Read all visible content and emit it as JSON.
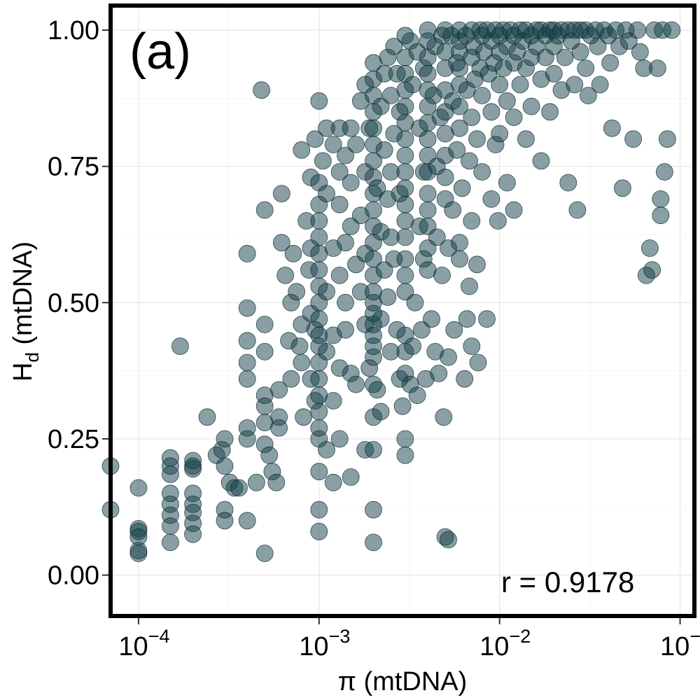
{
  "chart_data": {
    "type": "scatter",
    "panel_label": "(a)",
    "xlabel_main": "π",
    "xlabel_suffix": " (mtDNA)",
    "ylabel_main": "H",
    "ylabel_sub": "d",
    "ylabel_suffix": " (mtDNA)",
    "annotation": "r = 0.9178",
    "x_scale": "log10",
    "xlim": [
      7e-05,
      0.12
    ],
    "ylim": [
      -0.075,
      1.045
    ],
    "x_ticks": [
      {
        "value": 0.0001,
        "base": "10",
        "exp": "−4"
      },
      {
        "value": 0.001,
        "base": "10",
        "exp": "−3"
      },
      {
        "value": 0.01,
        "base": "10",
        "exp": "−2"
      },
      {
        "value": 0.1,
        "base": "10",
        "exp": "−1"
      }
    ],
    "y_ticks": [
      {
        "value": 0.0,
        "label": "0.00"
      },
      {
        "value": 0.25,
        "label": "0.25"
      },
      {
        "value": 0.5,
        "label": "0.50"
      },
      {
        "value": 0.75,
        "label": "0.75"
      },
      {
        "value": 1.0,
        "label": "1.00"
      }
    ],
    "grid": true,
    "point_color": "#133f48",
    "points": [
      [
        7e-05,
        0.2
      ],
      [
        7e-05,
        0.12
      ],
      [
        0.0001,
        0.16
      ],
      [
        0.0001,
        0.08
      ],
      [
        0.0001,
        0.085
      ],
      [
        0.0001,
        0.07
      ],
      [
        0.0001,
        0.04
      ],
      [
        0.0001,
        0.045
      ],
      [
        0.00015,
        0.215
      ],
      [
        0.00015,
        0.2
      ],
      [
        0.00015,
        0.185
      ],
      [
        0.00015,
        0.15
      ],
      [
        0.00015,
        0.13
      ],
      [
        0.00015,
        0.11
      ],
      [
        0.00015,
        0.09
      ],
      [
        0.00015,
        0.06
      ],
      [
        0.00017,
        0.42
      ],
      [
        0.0002,
        0.21
      ],
      [
        0.0002,
        0.2
      ],
      [
        0.0002,
        0.195
      ],
      [
        0.0002,
        0.15
      ],
      [
        0.0002,
        0.13
      ],
      [
        0.0002,
        0.115
      ],
      [
        0.0002,
        0.095
      ],
      [
        0.0002,
        0.075
      ],
      [
        0.00024,
        0.29
      ],
      [
        0.00027,
        0.22
      ],
      [
        0.00029,
        0.23
      ],
      [
        0.0003,
        0.25
      ],
      [
        0.0003,
        0.2
      ],
      [
        0.0003,
        0.12
      ],
      [
        0.0003,
        0.1
      ],
      [
        0.00032,
        0.17
      ],
      [
        0.00034,
        0.16
      ],
      [
        0.00036,
        0.16
      ],
      [
        0.0004,
        0.36
      ],
      [
        0.0004,
        0.39
      ],
      [
        0.0004,
        0.59
      ],
      [
        0.0004,
        0.49
      ],
      [
        0.0004,
        0.43
      ],
      [
        0.0004,
        0.27
      ],
      [
        0.0004,
        0.25
      ],
      [
        0.0004,
        0.1
      ],
      [
        0.00045,
        0.17
      ],
      [
        0.00048,
        0.89
      ],
      [
        0.0005,
        0.04
      ],
      [
        0.0005,
        0.67
      ],
      [
        0.0005,
        0.46
      ],
      [
        0.0005,
        0.41
      ],
      [
        0.0005,
        0.33
      ],
      [
        0.0005,
        0.31
      ],
      [
        0.0005,
        0.28
      ],
      [
        0.0005,
        0.24
      ],
      [
        0.00053,
        0.22
      ],
      [
        0.00055,
        0.19
      ],
      [
        0.00058,
        0.17
      ],
      [
        0.0006,
        0.34
      ],
      [
        0.0006,
        0.29
      ],
      [
        0.0006,
        0.27
      ],
      [
        0.00062,
        0.7
      ],
      [
        0.00062,
        0.61
      ],
      [
        0.00065,
        0.55
      ],
      [
        0.00068,
        0.43
      ],
      [
        0.0007,
        0.5
      ],
      [
        0.0007,
        0.36
      ],
      [
        0.00072,
        0.59
      ],
      [
        0.00075,
        0.52
      ],
      [
        0.00078,
        0.42
      ],
      [
        0.0008,
        0.78
      ],
      [
        0.0008,
        0.46
      ],
      [
        0.0008,
        0.39
      ],
      [
        0.00082,
        0.29
      ],
      [
        0.00085,
        0.65
      ],
      [
        0.00088,
        0.56
      ],
      [
        0.0009,
        0.73
      ],
      [
        0.0009,
        0.6
      ],
      [
        0.0009,
        0.48
      ],
      [
        0.0009,
        0.36
      ],
      [
        0.00095,
        0.8
      ],
      [
        0.00095,
        0.45
      ],
      [
        0.00095,
        0.32
      ],
      [
        0.001,
        0.87
      ],
      [
        0.001,
        0.19
      ],
      [
        0.001,
        0.12
      ],
      [
        0.001,
        0.08
      ],
      [
        0.001,
        0.25
      ],
      [
        0.001,
        0.27
      ],
      [
        0.001,
        0.3
      ],
      [
        0.001,
        0.33
      ],
      [
        0.001,
        0.36
      ],
      [
        0.001,
        0.39
      ],
      [
        0.001,
        0.42
      ],
      [
        0.001,
        0.44
      ],
      [
        0.001,
        0.47
      ],
      [
        0.001,
        0.5
      ],
      [
        0.001,
        0.53
      ],
      [
        0.001,
        0.56
      ],
      [
        0.001,
        0.59
      ],
      [
        0.001,
        0.62
      ],
      [
        0.001,
        0.65
      ],
      [
        0.001,
        0.68
      ],
      [
        0.001,
        0.72
      ],
      [
        0.00105,
        0.76
      ],
      [
        0.0011,
        0.82
      ],
      [
        0.0011,
        0.7
      ],
      [
        0.0011,
        0.52
      ],
      [
        0.0011,
        0.41
      ],
      [
        0.0011,
        0.23
      ],
      [
        0.0012,
        0.79
      ],
      [
        0.0012,
        0.6
      ],
      [
        0.0012,
        0.44
      ],
      [
        0.0012,
        0.32
      ],
      [
        0.0012,
        0.17
      ],
      [
        0.0013,
        0.82
      ],
      [
        0.0013,
        0.74
      ],
      [
        0.0013,
        0.68
      ],
      [
        0.0013,
        0.55
      ],
      [
        0.0013,
        0.38
      ],
      [
        0.0013,
        0.25
      ],
      [
        0.0014,
        0.77
      ],
      [
        0.0014,
        0.61
      ],
      [
        0.0014,
        0.5
      ],
      [
        0.0014,
        0.45
      ],
      [
        0.0015,
        0.82
      ],
      [
        0.0015,
        0.72
      ],
      [
        0.0015,
        0.64
      ],
      [
        0.0015,
        0.37
      ],
      [
        0.0015,
        0.18
      ],
      [
        0.0016,
        0.79
      ],
      [
        0.0016,
        0.57
      ],
      [
        0.0016,
        0.35
      ],
      [
        0.0017,
        0.87
      ],
      [
        0.0017,
        0.66
      ],
      [
        0.0017,
        0.52
      ],
      [
        0.0018,
        0.9
      ],
      [
        0.0018,
        0.74
      ],
      [
        0.0018,
        0.59
      ],
      [
        0.0018,
        0.46
      ],
      [
        0.0018,
        0.23
      ],
      [
        0.0019,
        0.82
      ],
      [
        0.0019,
        0.38
      ],
      [
        0.002,
        0.94
      ],
      [
        0.002,
        0.12
      ],
      [
        0.002,
        0.06
      ],
      [
        0.002,
        0.23
      ],
      [
        0.002,
        0.29
      ],
      [
        0.002,
        0.35
      ],
      [
        0.002,
        0.4
      ],
      [
        0.002,
        0.42
      ],
      [
        0.002,
        0.44
      ],
      [
        0.002,
        0.46
      ],
      [
        0.002,
        0.48
      ],
      [
        0.002,
        0.5
      ],
      [
        0.002,
        0.52
      ],
      [
        0.002,
        0.55
      ],
      [
        0.002,
        0.58
      ],
      [
        0.002,
        0.61
      ],
      [
        0.002,
        0.64
      ],
      [
        0.002,
        0.67
      ],
      [
        0.002,
        0.7
      ],
      [
        0.002,
        0.73
      ],
      [
        0.002,
        0.76
      ],
      [
        0.002,
        0.79
      ],
      [
        0.002,
        0.82
      ],
      [
        0.002,
        0.85
      ],
      [
        0.002,
        0.88
      ],
      [
        0.002,
        0.91
      ],
      [
        0.0021,
        0.71
      ],
      [
        0.0021,
        0.34
      ],
      [
        0.0022,
        0.86
      ],
      [
        0.0022,
        0.63
      ],
      [
        0.0022,
        0.47
      ],
      [
        0.0022,
        0.3
      ],
      [
        0.0023,
        0.92
      ],
      [
        0.0023,
        0.78
      ],
      [
        0.0023,
        0.56
      ],
      [
        0.0024,
        0.95
      ],
      [
        0.0024,
        0.69
      ],
      [
        0.0024,
        0.51
      ],
      [
        0.0025,
        0.88
      ],
      [
        0.0025,
        0.74
      ],
      [
        0.0025,
        0.62
      ],
      [
        0.0025,
        0.41
      ],
      [
        0.0026,
        0.97
      ],
      [
        0.0026,
        0.81
      ],
      [
        0.0026,
        0.58
      ],
      [
        0.0027,
        0.45
      ],
      [
        0.0027,
        0.92
      ],
      [
        0.0028,
        0.85
      ],
      [
        0.0028,
        0.7
      ],
      [
        0.0028,
        0.36
      ],
      [
        0.0029,
        0.31
      ],
      [
        0.003,
        0.99
      ],
      [
        0.003,
        0.22
      ],
      [
        0.003,
        0.25
      ],
      [
        0.003,
        0.37
      ],
      [
        0.003,
        0.41
      ],
      [
        0.003,
        0.44
      ],
      [
        0.003,
        0.52
      ],
      [
        0.003,
        0.55
      ],
      [
        0.003,
        0.58
      ],
      [
        0.003,
        0.62
      ],
      [
        0.003,
        0.65
      ],
      [
        0.003,
        0.68
      ],
      [
        0.003,
        0.71
      ],
      [
        0.003,
        0.74
      ],
      [
        0.003,
        0.77
      ],
      [
        0.003,
        0.8
      ],
      [
        0.003,
        0.83
      ],
      [
        0.003,
        0.86
      ],
      [
        0.003,
        0.89
      ],
      [
        0.003,
        0.92
      ],
      [
        0.003,
        0.95
      ],
      [
        0.0032,
        0.98
      ],
      [
        0.0032,
        0.35
      ],
      [
        0.0033,
        0.9
      ],
      [
        0.0033,
        0.42
      ],
      [
        0.0034,
        0.5
      ],
      [
        0.0035,
        0.96
      ],
      [
        0.0035,
        0.33
      ],
      [
        0.0036,
        0.82
      ],
      [
        0.0036,
        0.64
      ],
      [
        0.0037,
        0.45
      ],
      [
        0.0038,
        0.93
      ],
      [
        0.0038,
        0.74
      ],
      [
        0.0038,
        0.58
      ],
      [
        0.0039,
        0.36
      ],
      [
        0.004,
        1.0
      ],
      [
        0.004,
        0.56
      ],
      [
        0.004,
        0.6
      ],
      [
        0.004,
        0.64
      ],
      [
        0.004,
        0.67
      ],
      [
        0.004,
        0.7
      ],
      [
        0.004,
        0.74
      ],
      [
        0.004,
        0.77
      ],
      [
        0.004,
        0.8
      ],
      [
        0.004,
        0.83
      ],
      [
        0.004,
        0.86
      ],
      [
        0.004,
        0.89
      ],
      [
        0.004,
        0.92
      ],
      [
        0.004,
        0.95
      ],
      [
        0.004,
        0.98
      ],
      [
        0.0042,
        0.47
      ],
      [
        0.0043,
        0.88
      ],
      [
        0.0044,
        0.97
      ],
      [
        0.0044,
        0.41
      ],
      [
        0.0045,
        0.75
      ],
      [
        0.0045,
        0.62
      ],
      [
        0.0046,
        0.37
      ],
      [
        0.0047,
        0.84
      ],
      [
        0.0048,
        0.99
      ],
      [
        0.0048,
        0.55
      ],
      [
        0.0049,
        0.29
      ],
      [
        0.005,
        1.0
      ],
      [
        0.005,
        0.07
      ],
      [
        0.005,
        0.69
      ],
      [
        0.005,
        0.73
      ],
      [
        0.005,
        0.77
      ],
      [
        0.005,
        0.81
      ],
      [
        0.005,
        0.85
      ],
      [
        0.005,
        0.89
      ],
      [
        0.005,
        0.93
      ],
      [
        0.005,
        0.96
      ],
      [
        0.0052,
        0.065
      ],
      [
        0.0052,
        0.6
      ],
      [
        0.0052,
        0.4
      ],
      [
        0.0054,
        0.99
      ],
      [
        0.0055,
        0.87
      ],
      [
        0.0055,
        0.67
      ],
      [
        0.0056,
        0.45
      ],
      [
        0.0058,
        0.94
      ],
      [
        0.0058,
        0.78
      ],
      [
        0.006,
        1.0
      ],
      [
        0.006,
        0.61
      ],
      [
        0.006,
        0.58
      ],
      [
        0.006,
        0.82
      ],
      [
        0.006,
        0.86
      ],
      [
        0.006,
        0.9
      ],
      [
        0.006,
        0.93
      ],
      [
        0.006,
        0.96
      ],
      [
        0.006,
        0.98
      ],
      [
        0.0062,
        0.71
      ],
      [
        0.0064,
        0.36
      ],
      [
        0.0065,
        0.99
      ],
      [
        0.0066,
        0.89
      ],
      [
        0.0066,
        0.47
      ],
      [
        0.0068,
        0.76
      ],
      [
        0.0068,
        0.53
      ],
      [
        0.007,
        1.0
      ],
      [
        0.007,
        0.95
      ],
      [
        0.007,
        0.84
      ],
      [
        0.007,
        0.65
      ],
      [
        0.007,
        0.42
      ],
      [
        0.0072,
        0.97
      ],
      [
        0.0073,
        0.91
      ],
      [
        0.0075,
        0.8
      ],
      [
        0.0075,
        0.57
      ],
      [
        0.0076,
        0.39
      ],
      [
        0.0078,
        1.0
      ],
      [
        0.0078,
        0.93
      ],
      [
        0.008,
        0.99
      ],
      [
        0.008,
        0.88
      ],
      [
        0.008,
        0.74
      ],
      [
        0.0082,
        0.96
      ],
      [
        0.0085,
        1.0
      ],
      [
        0.0085,
        0.47
      ],
      [
        0.0087,
        0.92
      ],
      [
        0.009,
        0.98
      ],
      [
        0.009,
        0.85
      ],
      [
        0.009,
        0.69
      ],
      [
        0.0093,
        0.94
      ],
      [
        0.0095,
        1.0
      ],
      [
        0.0095,
        0.79
      ],
      [
        0.0098,
        0.65
      ],
      [
        0.01,
        0.99
      ],
      [
        0.01,
        0.96
      ],
      [
        0.01,
        0.9
      ],
      [
        0.01,
        0.81
      ],
      [
        0.0105,
        1.0
      ],
      [
        0.0105,
        0.93
      ],
      [
        0.011,
        0.97
      ],
      [
        0.011,
        0.87
      ],
      [
        0.011,
        0.72
      ],
      [
        0.0115,
        1.0
      ],
      [
        0.012,
        0.99
      ],
      [
        0.012,
        0.94
      ],
      [
        0.012,
        0.84
      ],
      [
        0.012,
        0.67
      ],
      [
        0.0125,
        0.96
      ],
      [
        0.013,
        1.0
      ],
      [
        0.013,
        0.9
      ],
      [
        0.0135,
        0.98
      ],
      [
        0.014,
        1.0
      ],
      [
        0.014,
        0.93
      ],
      [
        0.014,
        0.8
      ],
      [
        0.015,
        0.99
      ],
      [
        0.015,
        0.95
      ],
      [
        0.015,
        0.86
      ],
      [
        0.016,
        1.0
      ],
      [
        0.016,
        0.97
      ],
      [
        0.017,
        1.0
      ],
      [
        0.017,
        0.91
      ],
      [
        0.017,
        0.76
      ],
      [
        0.018,
        0.99
      ],
      [
        0.018,
        0.95
      ],
      [
        0.019,
        1.0
      ],
      [
        0.019,
        0.85
      ],
      [
        0.02,
        1.0
      ],
      [
        0.02,
        0.97
      ],
      [
        0.02,
        0.92
      ],
      [
        0.021,
        0.99
      ],
      [
        0.022,
        1.0
      ],
      [
        0.022,
        0.89
      ],
      [
        0.023,
        0.95
      ],
      [
        0.024,
        1.0
      ],
      [
        0.024,
        0.72
      ],
      [
        0.025,
        0.98
      ],
      [
        0.026,
        1.0
      ],
      [
        0.026,
        0.9
      ],
      [
        0.027,
        0.67
      ],
      [
        0.028,
        1.0
      ],
      [
        0.028,
        0.96
      ],
      [
        0.03,
        1.0
      ],
      [
        0.03,
        0.93
      ],
      [
        0.031,
        0.88
      ],
      [
        0.032,
        0.99
      ],
      [
        0.034,
        1.0
      ],
      [
        0.035,
        0.97
      ],
      [
        0.036,
        0.9
      ],
      [
        0.038,
        1.0
      ],
      [
        0.04,
        0.99
      ],
      [
        0.041,
        0.94
      ],
      [
        0.042,
        0.82
      ],
      [
        0.044,
        1.0
      ],
      [
        0.046,
        0.97
      ],
      [
        0.048,
        0.71
      ],
      [
        0.05,
        1.0
      ],
      [
        0.052,
        0.98
      ],
      [
        0.055,
        0.8
      ],
      [
        0.058,
        1.0
      ],
      [
        0.06,
        0.96
      ],
      [
        0.063,
        0.93
      ],
      [
        0.065,
        0.55
      ],
      [
        0.068,
        0.6
      ],
      [
        0.07,
        0.56
      ],
      [
        0.072,
        1.0
      ],
      [
        0.075,
        0.93
      ],
      [
        0.078,
        0.69
      ],
      [
        0.078,
        0.66
      ],
      [
        0.08,
        1.0
      ],
      [
        0.082,
        0.74
      ],
      [
        0.085,
        0.8
      ],
      [
        0.09,
        1.0
      ]
    ]
  }
}
